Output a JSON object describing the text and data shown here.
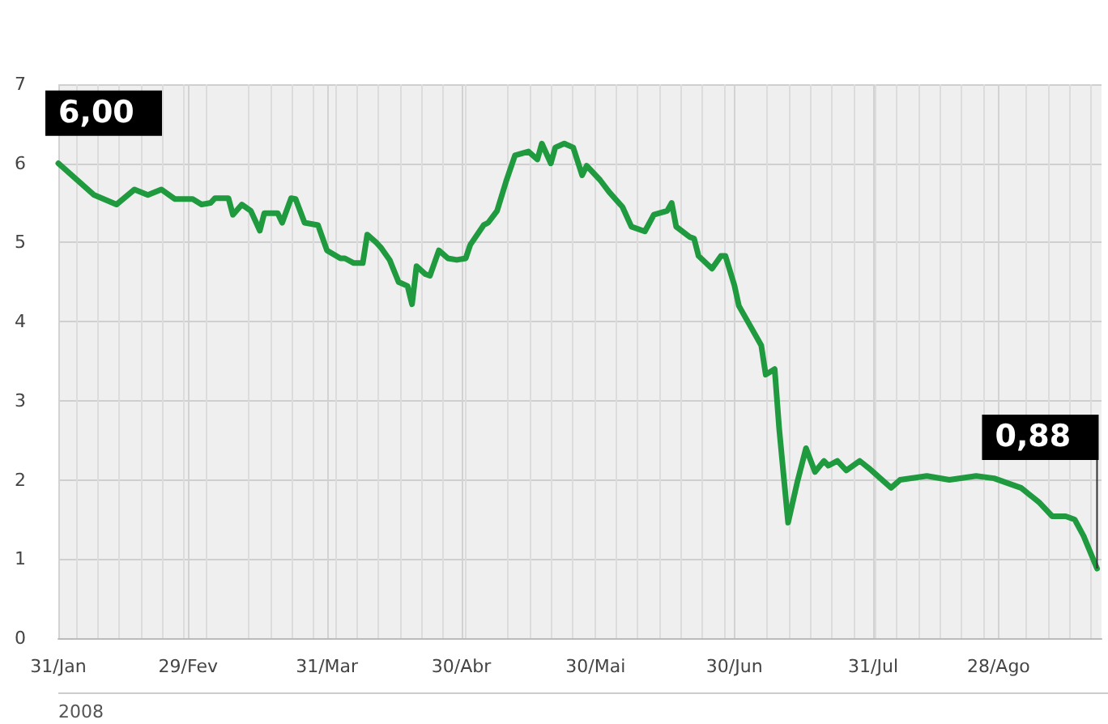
{
  "chart_data": {
    "type": "line",
    "color": "#1f9a3f",
    "x": [
      "2008-01-31",
      "2008-02-08",
      "2008-02-13",
      "2008-02-17",
      "2008-02-20",
      "2008-02-23",
      "2008-02-26",
      "2008-03-01",
      "2008-03-03",
      "2008-03-05",
      "2008-03-06",
      "2008-03-09",
      "2008-03-10",
      "2008-03-12",
      "2008-03-14",
      "2008-03-16",
      "2008-03-17",
      "2008-03-20",
      "2008-03-21",
      "2008-03-23",
      "2008-03-24",
      "2008-03-26",
      "2008-03-29",
      "2008-03-31",
      "2008-04-03",
      "2008-04-04",
      "2008-04-06",
      "2008-04-08",
      "2008-04-09",
      "2008-04-11",
      "2008-04-12",
      "2008-04-14",
      "2008-04-16",
      "2008-04-18",
      "2008-04-19",
      "2008-04-20",
      "2008-04-22",
      "2008-04-23",
      "2008-04-25",
      "2008-04-27",
      "2008-04-29",
      "2008-05-01",
      "2008-05-02",
      "2008-05-05",
      "2008-05-06",
      "2008-05-08",
      "2008-05-10",
      "2008-05-12",
      "2008-05-15",
      "2008-05-17",
      "2008-05-18",
      "2008-05-20",
      "2008-05-21",
      "2008-05-23",
      "2008-05-25",
      "2008-05-27",
      "2008-05-28",
      "2008-05-31",
      "2008-06-02",
      "2008-06-05",
      "2008-06-07",
      "2008-06-10",
      "2008-06-12",
      "2008-06-15",
      "2008-06-16",
      "2008-06-17",
      "2008-06-20",
      "2008-06-21",
      "2008-06-22",
      "2008-06-25",
      "2008-06-27",
      "2008-06-28",
      "2008-06-30",
      "2008-07-01",
      "2008-07-03",
      "2008-07-06",
      "2008-07-07",
      "2008-07-09",
      "2008-07-10",
      "2008-07-12",
      "2008-07-14",
      "2008-07-16",
      "2008-07-18",
      "2008-07-20",
      "2008-07-21",
      "2008-07-23",
      "2008-07-25",
      "2008-07-28",
      "2008-07-30",
      "2008-08-04",
      "2008-08-06",
      "2008-08-12",
      "2008-08-17",
      "2008-08-23",
      "2008-08-27",
      "2008-09-02",
      "2008-09-06",
      "2008-09-09",
      "2008-09-12",
      "2008-09-14",
      "2008-09-16",
      "2008-09-19"
    ],
    "values": [
      6.0,
      5.6,
      5.48,
      5.67,
      5.6,
      5.67,
      5.55,
      5.55,
      5.48,
      5.5,
      5.56,
      5.56,
      5.35,
      5.48,
      5.4,
      5.15,
      5.37,
      5.37,
      5.25,
      5.56,
      5.55,
      5.25,
      5.22,
      4.9,
      4.8,
      4.8,
      4.74,
      4.74,
      5.1,
      5.0,
      4.94,
      4.78,
      4.5,
      4.45,
      4.22,
      4.7,
      4.6,
      4.58,
      4.9,
      4.8,
      4.78,
      4.8,
      4.97,
      5.22,
      5.25,
      5.4,
      5.77,
      6.1,
      6.15,
      6.05,
      6.25,
      6.0,
      6.2,
      6.25,
      6.2,
      5.85,
      5.97,
      5.79,
      5.64,
      5.45,
      5.2,
      5.14,
      5.35,
      5.4,
      5.5,
      5.2,
      5.07,
      5.05,
      4.83,
      4.67,
      4.83,
      4.83,
      4.46,
      4.2,
      4.0,
      3.7,
      3.33,
      3.4,
      2.65,
      1.46,
      1.96,
      2.4,
      2.1,
      2.24,
      2.18,
      2.24,
      2.12,
      2.24,
      2.15,
      1.9,
      2.0,
      2.05,
      2.0,
      2.05,
      2.02,
      1.9,
      1.72,
      1.54,
      1.54,
      1.5,
      1.29,
      0.88
    ],
    "xlim": [
      "2008-01-31",
      "2008-09-20"
    ],
    "xticks": [
      {
        "value": "2008-01-31",
        "label": "31/Jan"
      },
      {
        "value": "2008-02-29",
        "label": "29/Fev"
      },
      {
        "value": "2008-03-31",
        "label": "31/Mar"
      },
      {
        "value": "2008-04-30",
        "label": "30/Abr"
      },
      {
        "value": "2008-05-30",
        "label": "30/Mai"
      },
      {
        "value": "2008-06-30",
        "label": "30/Jun"
      },
      {
        "value": "2008-07-31",
        "label": "31/Jul"
      },
      {
        "value": "2008-08-28",
        "label": "28/Ago"
      }
    ],
    "ylim": [
      0,
      7
    ],
    "yticks": [
      0,
      1,
      2,
      3,
      4,
      5,
      6,
      7
    ],
    "grid": true,
    "marker": "none",
    "line_style": "solid",
    "annotations": [
      {
        "text": "6,00",
        "x": "2008-01-31",
        "y": 6.0
      },
      {
        "text": "0,88",
        "x": "2008-09-19",
        "y": 0.88
      },
      "2008"
    ]
  }
}
